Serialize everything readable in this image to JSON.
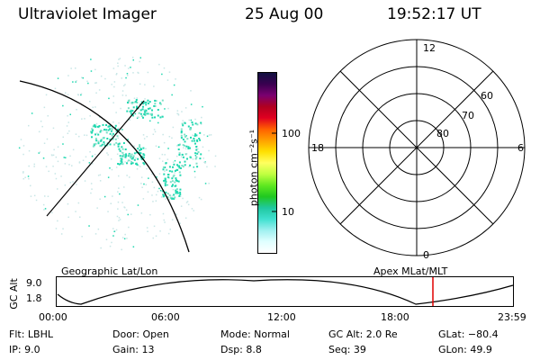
{
  "header": {
    "instrument": "Ultraviolet Imager",
    "date": "25 Aug 00",
    "time": "19:52:17 UT"
  },
  "image_panel": {
    "caption": "Geographic Lat/Lon",
    "speck_color": "#20d8b0"
  },
  "colorbar": {
    "unit_label": "photon cm⁻²s⁻¹",
    "ticks": [
      "100",
      "10"
    ],
    "colors_top_to_bottom": [
      "#101040",
      "#3a0050",
      "#7a0070",
      "#b00020",
      "#e00020",
      "#ff6000",
      "#ffa000",
      "#ffe000",
      "#ffff60",
      "#c0ff40",
      "#60e820",
      "#20c820",
      "#20c8a0",
      "#40e0d0",
      "#a0f0f0",
      "#e0ffff",
      "#ffffff"
    ]
  },
  "polar_plot": {
    "caption": "Apex MLat/MLT",
    "mlt_labels": {
      "top": "12",
      "bottom": "0",
      "left": "18",
      "right": "6"
    },
    "mlat_labels": [
      "60",
      "70",
      "80"
    ]
  },
  "altitude_plot": {
    "ylabel": "GC Alt",
    "y_ticks": [
      "9.0",
      "1.8"
    ],
    "x_ticks": [
      "00:00",
      "06:00",
      "12:00",
      "18:00",
      "23:59"
    ],
    "current_time_marker_color": "#e00000"
  },
  "info": {
    "flt": "Flt: LBHL",
    "ip": "IP:  9.0",
    "door": "Door: Open",
    "gain": "Gain: 13",
    "mode": "Mode: Normal",
    "dsp": "Dsp:    8.8",
    "gc_alt": "GC Alt: 2.0 Re",
    "seq": "Seq: 39",
    "glat": "GLat: −80.4",
    "glon": "GLon:  49.9"
  }
}
